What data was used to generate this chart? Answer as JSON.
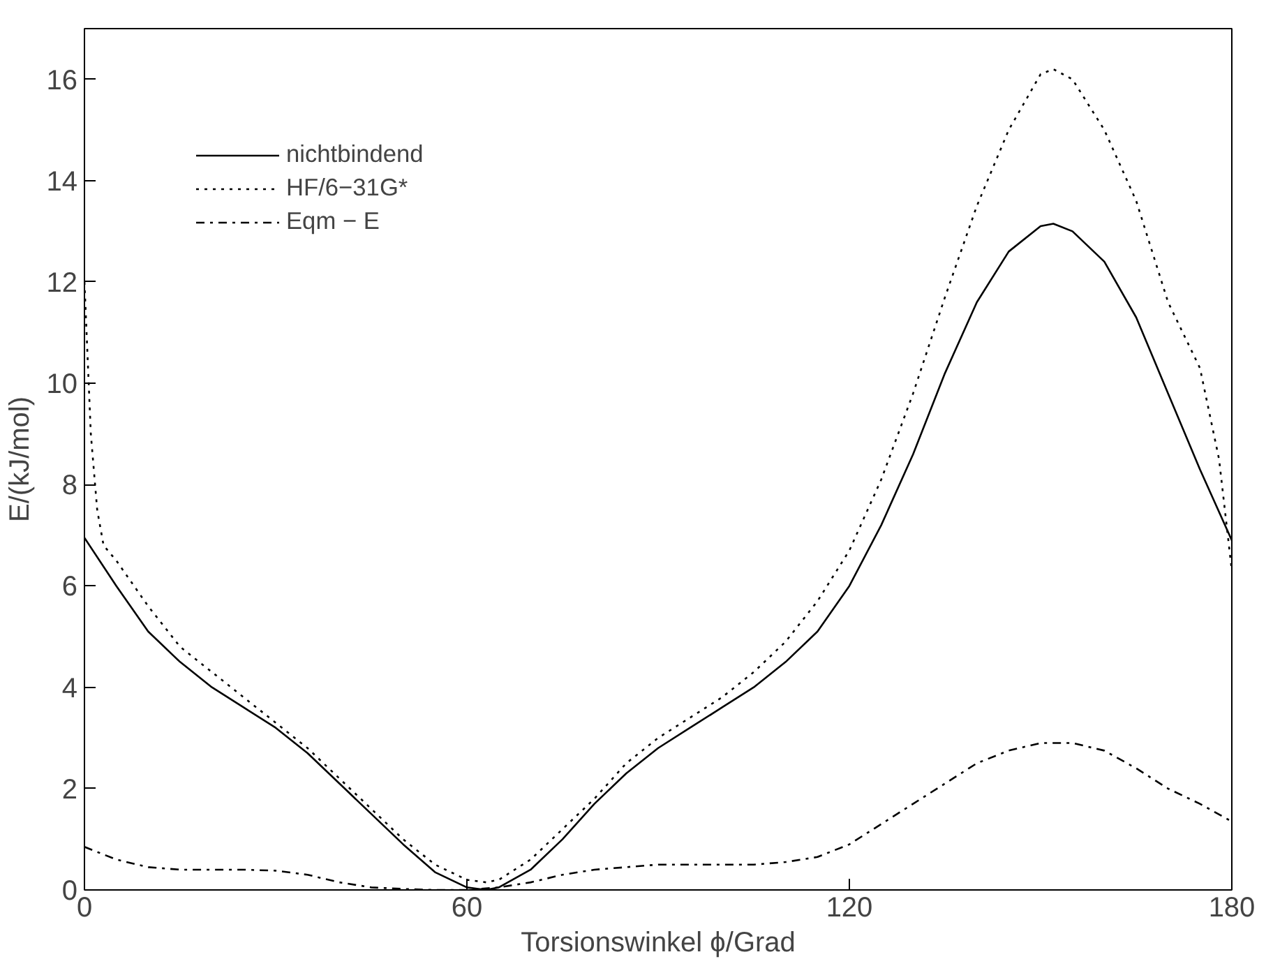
{
  "chart_data": {
    "type": "line",
    "xlabel": "Torsionswinkel ϕ/Grad",
    "ylabel": "E/(kJ/mol)",
    "xlim": [
      0,
      180
    ],
    "xticks": [
      0,
      60,
      120,
      180
    ],
    "ylim": [
      0,
      17
    ],
    "yticks": [
      0,
      2,
      4,
      6,
      8,
      10,
      12,
      14,
      16
    ],
    "grid": false,
    "legend": "top left",
    "marker": "none",
    "series": [
      {
        "name": "nichtbindend",
        "color": "#000000",
        "line_style": "solid",
        "x": [
          0,
          5,
          10,
          15,
          20,
          25,
          30,
          35,
          40,
          45,
          50,
          55,
          60,
          63,
          65,
          70,
          75,
          80,
          85,
          90,
          95,
          100,
          105,
          110,
          115,
          120,
          125,
          130,
          135,
          140,
          145,
          150,
          152,
          155,
          160,
          165,
          170,
          175,
          180
        ],
        "values": [
          6.95,
          6.0,
          5.1,
          4.5,
          4.0,
          3.6,
          3.2,
          2.7,
          2.1,
          1.5,
          0.9,
          0.35,
          0.05,
          0.0,
          0.05,
          0.4,
          1.0,
          1.7,
          2.3,
          2.8,
          3.2,
          3.6,
          4.0,
          4.5,
          5.1,
          6.0,
          7.2,
          8.6,
          10.2,
          11.6,
          12.6,
          13.1,
          13.15,
          13.0,
          12.4,
          11.3,
          9.8,
          8.3,
          6.9
        ]
      },
      {
        "name": "HF/6−31G*",
        "color": "#000000",
        "line_style": "dotted",
        "x": [
          0,
          1,
          2,
          3,
          5,
          10,
          15,
          20,
          25,
          30,
          35,
          40,
          45,
          50,
          55,
          60,
          63,
          65,
          70,
          75,
          80,
          85,
          90,
          95,
          100,
          105,
          110,
          115,
          120,
          125,
          130,
          135,
          140,
          145,
          150,
          152,
          155,
          160,
          165,
          170,
          175,
          178,
          180
        ],
        "values": [
          12.0,
          9.0,
          7.5,
          6.8,
          6.5,
          5.6,
          4.8,
          4.3,
          3.8,
          3.3,
          2.8,
          2.2,
          1.6,
          1.0,
          0.5,
          0.2,
          0.15,
          0.2,
          0.6,
          1.2,
          1.8,
          2.5,
          3.0,
          3.4,
          3.8,
          4.3,
          4.9,
          5.7,
          6.7,
          8.1,
          9.8,
          11.7,
          13.5,
          15.0,
          16.1,
          16.2,
          16.0,
          15.0,
          13.6,
          11.6,
          10.3,
          8.5,
          6.3
        ]
      },
      {
        "name": "Eqm − E",
        "color": "#000000",
        "line_style": "dashdot",
        "x": [
          0,
          5,
          10,
          15,
          20,
          25,
          30,
          35,
          40,
          45,
          50,
          55,
          60,
          65,
          70,
          75,
          80,
          85,
          90,
          95,
          100,
          105,
          110,
          115,
          120,
          125,
          130,
          135,
          140,
          145,
          150,
          155,
          160,
          165,
          170,
          175,
          180
        ],
        "values": [
          0.85,
          0.6,
          0.45,
          0.4,
          0.4,
          0.4,
          0.38,
          0.3,
          0.15,
          0.05,
          0.02,
          0.0,
          0.0,
          0.05,
          0.15,
          0.3,
          0.4,
          0.45,
          0.5,
          0.5,
          0.5,
          0.5,
          0.55,
          0.65,
          0.9,
          1.3,
          1.7,
          2.1,
          2.5,
          2.75,
          2.9,
          2.9,
          2.75,
          2.4,
          2.0,
          1.7,
          1.35
        ]
      }
    ]
  }
}
